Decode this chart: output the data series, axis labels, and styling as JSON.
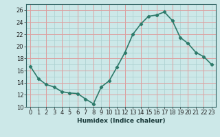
{
  "x": [
    0,
    1,
    2,
    3,
    4,
    5,
    6,
    7,
    8,
    9,
    10,
    11,
    12,
    13,
    14,
    15,
    16,
    17,
    18,
    19,
    20,
    21,
    22,
    23
  ],
  "y": [
    16.7,
    14.7,
    13.7,
    13.3,
    12.5,
    12.3,
    12.2,
    11.3,
    10.5,
    13.3,
    14.3,
    16.6,
    19.0,
    22.0,
    23.7,
    25.0,
    25.2,
    25.7,
    24.3,
    21.5,
    20.5,
    19.0,
    18.3,
    17.0
  ],
  "line_color": "#2d7a6a",
  "marker": "D",
  "marker_size": 2.2,
  "background_color": "#cce8e8",
  "minor_grid_color": "#aacfcf",
  "major_grid_color": "#dda0a0",
  "xlabel": "Humidex (Indice chaleur)",
  "xlim": [
    -0.5,
    23.5
  ],
  "ylim": [
    10,
    27
  ],
  "yticks": [
    10,
    12,
    14,
    16,
    18,
    20,
    22,
    24,
    26
  ],
  "xticks": [
    0,
    1,
    2,
    3,
    4,
    5,
    6,
    7,
    8,
    9,
    10,
    11,
    12,
    13,
    14,
    15,
    16,
    17,
    18,
    19,
    20,
    21,
    22,
    23
  ],
  "xlabel_fontsize": 6.5,
  "tick_fontsize": 6.0,
  "line_width": 1.2
}
